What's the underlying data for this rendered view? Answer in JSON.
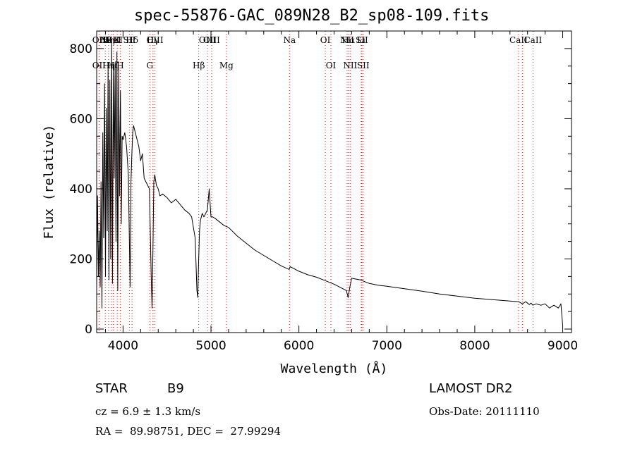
{
  "chart_data": {
    "type": "line",
    "title": "spec-55876-GAC_089N28_B2_sp08-109.fits",
    "xlabel": "Wavelength (Å)",
    "ylabel": "Flux (relative)",
    "xlim": [
      3700,
      9100
    ],
    "ylim": [
      -10,
      850
    ],
    "xticks": [
      4000,
      5000,
      6000,
      7000,
      8000,
      9000
    ],
    "yticks": [
      0,
      200,
      400,
      600,
      800
    ],
    "grid": false,
    "line_color": "#000000",
    "marker_color": "#ff0000",
    "series": [
      {
        "x": [
          3700,
          3710,
          3720,
          3730,
          3740,
          3750,
          3760,
          3770,
          3780,
          3790,
          3800,
          3810,
          3820,
          3830,
          3840,
          3850,
          3860,
          3870,
          3880,
          3890,
          3900,
          3910,
          3920,
          3930,
          3940,
          3950,
          3960,
          3970,
          3980,
          3990,
          4000,
          4020,
          4040,
          4060,
          4080,
          4090,
          4100,
          4110,
          4120,
          4140,
          4160,
          4180,
          4200,
          4220,
          4240,
          4260,
          4280,
          4300,
          4320,
          4330,
          4340,
          4350,
          4360,
          4380,
          4400,
          4420,
          4450,
          4500,
          4550,
          4600,
          4650,
          4700,
          4750,
          4780,
          4800,
          4820,
          4840,
          4850,
          4860,
          4870,
          4880,
          4900,
          4920,
          4940,
          4960,
          4980,
          5000,
          5020,
          5050,
          5100,
          5150,
          5200,
          5300,
          5400,
          5500,
          5600,
          5700,
          5800,
          5890,
          5900,
          6000,
          6100,
          6200,
          6300,
          6400,
          6500,
          6540,
          6560,
          6580,
          6600,
          6700,
          6800,
          6900,
          7000,
          7200,
          7400,
          7600,
          7800,
          8000,
          8200,
          8400,
          8500,
          8540,
          8580,
          8620,
          8640,
          8660,
          8700,
          8750,
          8800,
          8850,
          8900,
          8950,
          8980,
          9000
        ],
        "y": [
          120,
          380,
          150,
          280,
          120,
          420,
          60,
          560,
          260,
          700,
          150,
          630,
          280,
          760,
          140,
          710,
          200,
          820,
          130,
          750,
          430,
          760,
          250,
          790,
          110,
          740,
          380,
          680,
          300,
          550,
          540,
          560,
          520,
          440,
          120,
          420,
          500,
          560,
          580,
          560,
          540,
          520,
          480,
          500,
          430,
          420,
          410,
          400,
          150,
          60,
          230,
          420,
          440,
          410,
          400,
          380,
          385,
          375,
          360,
          370,
          355,
          340,
          330,
          320,
          290,
          260,
          110,
          90,
          200,
          280,
          310,
          330,
          320,
          330,
          340,
          400,
          320,
          320,
          315,
          305,
          295,
          290,
          265,
          245,
          225,
          210,
          195,
          180,
          170,
          178,
          165,
          155,
          148,
          138,
          128,
          115,
          110,
          90,
          120,
          145,
          140,
          130,
          125,
          122,
          115,
          108,
          100,
          94,
          88,
          84,
          80,
          78,
          72,
          78,
          70,
          74,
          68,
          72,
          68,
          72,
          60,
          68,
          60,
          72,
          10
        ]
      }
    ],
    "line_markers": [
      {
        "x": 3727,
        "top": "OII",
        "bottom": "OII"
      },
      {
        "x": 3798,
        "top": "Hθ",
        "bottom": ""
      },
      {
        "x": 3835,
        "top": "Hη",
        "bottom": "Hη"
      },
      {
        "x": 3869,
        "top": "NeIII",
        "bottom": ""
      },
      {
        "x": 3889,
        "top": "HeI",
        "bottom": "Hζ"
      },
      {
        "x": 3934,
        "top": "K",
        "bottom": ""
      },
      {
        "x": 3969,
        "top": "",
        "bottom": "H"
      },
      {
        "x": 4072,
        "top": "SII",
        "bottom": ""
      },
      {
        "x": 4102,
        "top": "Hδ",
        "bottom": ""
      },
      {
        "x": 4304,
        "top": "",
        "bottom": "G"
      },
      {
        "x": 4340,
        "top": "Hγ",
        "bottom": ""
      },
      {
        "x": 4363,
        "top": "OIII",
        "bottom": ""
      },
      {
        "x": 4861,
        "top": "",
        "bottom": "Hβ"
      },
      {
        "x": 4959,
        "top": "OIII",
        "bottom": ""
      },
      {
        "x": 5007,
        "top": "OIII",
        "bottom": ""
      },
      {
        "x": 5175,
        "top": "",
        "bottom": "Mg"
      },
      {
        "x": 5893,
        "top": "Na",
        "bottom": ""
      },
      {
        "x": 6300,
        "top": "OI",
        "bottom": ""
      },
      {
        "x": 6364,
        "top": "",
        "bottom": "OI"
      },
      {
        "x": 6548,
        "top": "NII",
        "bottom": ""
      },
      {
        "x": 6563,
        "top": "Hα",
        "bottom": ""
      },
      {
        "x": 6583,
        "top": "",
        "bottom": "NII"
      },
      {
        "x": 6708,
        "top": "Li",
        "bottom": ""
      },
      {
        "x": 6716,
        "top": "SII",
        "bottom": ""
      },
      {
        "x": 6731,
        "top": "",
        "bottom": "SII"
      },
      {
        "x": 8498,
        "top": "CaII",
        "bottom": ""
      },
      {
        "x": 8542,
        "top": "",
        "bottom": ""
      },
      {
        "x": 8662,
        "top": "CaII",
        "bottom": ""
      }
    ]
  },
  "info": {
    "object_class": "STAR",
    "subclass": "B9",
    "survey": "LAMOST DR2",
    "redshift": "cz = 6.9 ± 1.3 km/s",
    "obs_date": "Obs-Date: 20111110",
    "coords": "RA =  89.98751, DEC =  27.99294"
  }
}
